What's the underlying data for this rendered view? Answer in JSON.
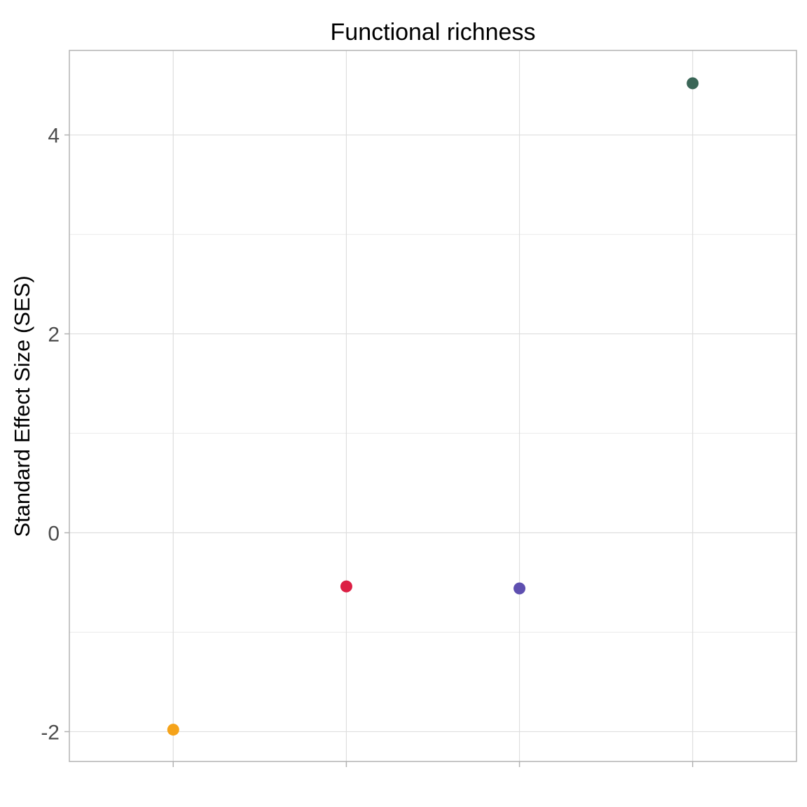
{
  "chart_data": {
    "type": "scatter",
    "title": "Functional richness",
    "xlabel": "",
    "ylabel": "Standard Effect Size (SES)",
    "categories": [
      "",
      "",
      "",
      ""
    ],
    "values": [
      -1.98,
      -0.54,
      -0.56,
      4.52
    ],
    "colors": [
      "#F5A31A",
      "#DC1F44",
      "#5E4FB0",
      "#3A6657"
    ],
    "ylim": [
      -2.3,
      4.85
    ],
    "yticks": [
      -2,
      0,
      2,
      4
    ],
    "ytick_labels": [
      "-2",
      "0",
      "2",
      "4"
    ],
    "grid": true,
    "legend": "none"
  }
}
